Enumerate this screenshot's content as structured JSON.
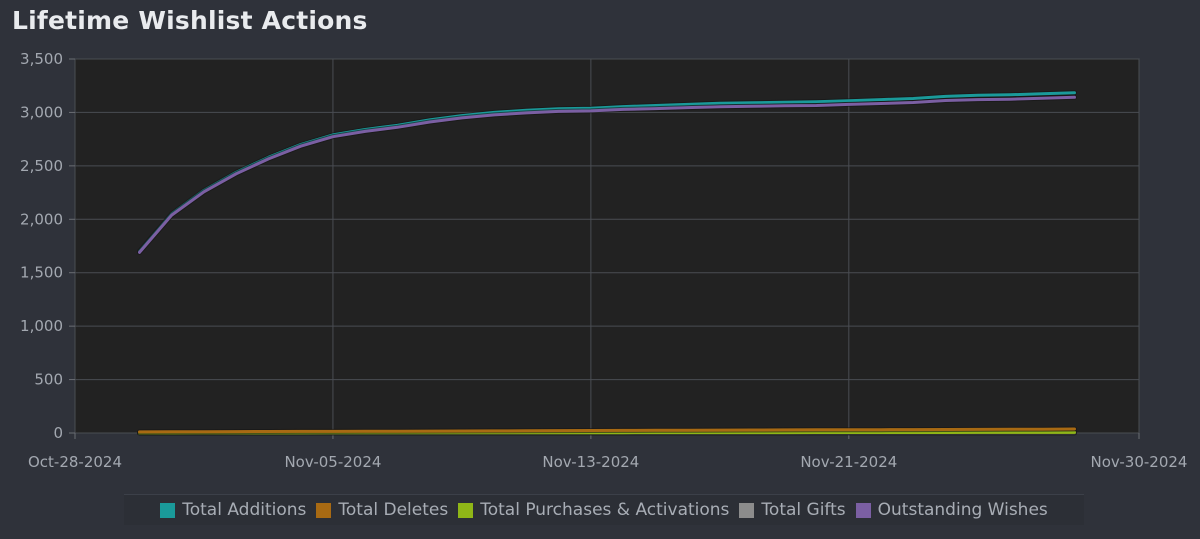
{
  "chart_data": {
    "type": "line",
    "title": "Lifetime Wishlist Actions",
    "ylim": [
      0,
      3500
    ],
    "xlim": [
      "2024-10-28",
      "2024-11-30"
    ],
    "y_ticks": [
      "3,500",
      "3,000",
      "2,500",
      "2,000",
      "1,500",
      "1,000",
      "500",
      "0"
    ],
    "y_tick_values": [
      3500,
      3000,
      2500,
      2000,
      1500,
      1000,
      500,
      0
    ],
    "x_ticks": [
      "Oct-28-2024",
      "Nov-05-2024",
      "Nov-13-2024",
      "Nov-21-2024",
      "Nov-30-2024"
    ],
    "x_tick_dates": [
      "2024-10-28",
      "2024-11-05",
      "2024-11-13",
      "2024-11-21",
      "2024-11-30"
    ],
    "x": [
      "2024-10-30",
      "2024-10-31",
      "2024-11-01",
      "2024-11-02",
      "2024-11-03",
      "2024-11-04",
      "2024-11-05",
      "2024-11-06",
      "2024-11-07",
      "2024-11-08",
      "2024-11-09",
      "2024-11-10",
      "2024-11-11",
      "2024-11-12",
      "2024-11-13",
      "2024-11-14",
      "2024-11-15",
      "2024-11-16",
      "2024-11-17",
      "2024-11-18",
      "2024-11-19",
      "2024-11-20",
      "2024-11-21",
      "2024-11-22",
      "2024-11-23",
      "2024-11-24",
      "2024-11-25",
      "2024-11-26",
      "2024-11-27",
      "2024-11-28"
    ],
    "series": [
      {
        "name": "Total Additions",
        "color": "#1a9a9a",
        "values": [
          1700,
          2050,
          2270,
          2440,
          2580,
          2700,
          2790,
          2840,
          2880,
          2930,
          2970,
          3000,
          3020,
          3035,
          3040,
          3055,
          3065,
          3075,
          3085,
          3090,
          3095,
          3100,
          3110,
          3120,
          3130,
          3150,
          3160,
          3165,
          3175,
          3185
        ]
      },
      {
        "name": "Total Deletes",
        "color": "#a86a13",
        "values": [
          10,
          11,
          12,
          13,
          14,
          15,
          15,
          16,
          17,
          18,
          19,
          20,
          21,
          22,
          23,
          24,
          25,
          26,
          27,
          28,
          29,
          30,
          30,
          31,
          32,
          33,
          34,
          35,
          36,
          37
        ]
      },
      {
        "name": "Total Purchases & Activations",
        "color": "#8fb617",
        "values": [
          0,
          0,
          1,
          1,
          1,
          1,
          2,
          2,
          2,
          2,
          2,
          3,
          3,
          3,
          3,
          3,
          4,
          4,
          4,
          4,
          4,
          5,
          5,
          5,
          5,
          5,
          6,
          6,
          6,
          6
        ]
      },
      {
        "name": "Total Gifts",
        "color": "#8c8c8c",
        "values": [
          0,
          0,
          0,
          0,
          0,
          0,
          0,
          0,
          0,
          0,
          0,
          0,
          0,
          0,
          0,
          0,
          0,
          0,
          0,
          0,
          0,
          0,
          0,
          0,
          0,
          0,
          0,
          0,
          0,
          0
        ]
      },
      {
        "name": "Outstanding Wishes",
        "color": "#7b5fa3",
        "values": [
          1690,
          2039,
          2257,
          2426,
          2565,
          2684,
          2773,
          2822,
          2861,
          2910,
          2949,
          2977,
          2996,
          3010,
          3014,
          3028,
          3036,
          3045,
          3054,
          3058,
          3062,
          3065,
          3075,
          3084,
          3093,
          3112,
          3120,
          3124,
          3133,
          3142
        ]
      }
    ]
  }
}
